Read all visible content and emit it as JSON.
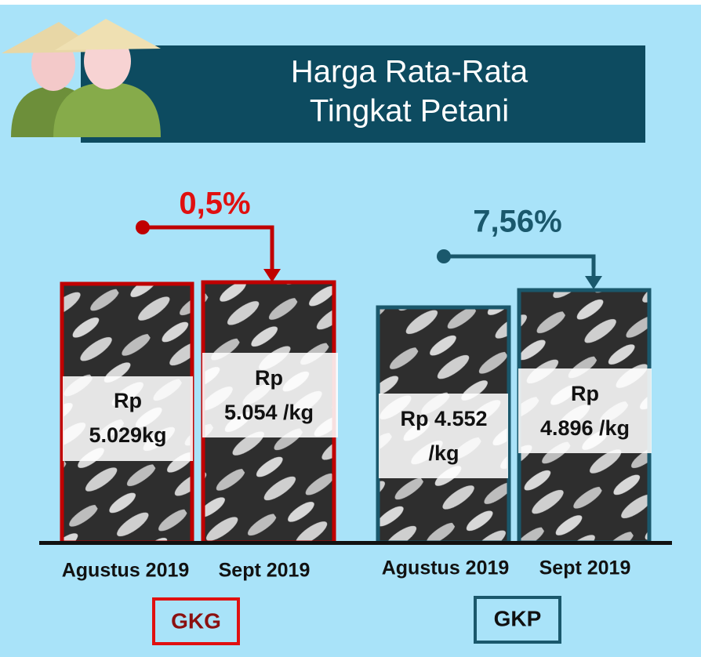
{
  "title": [
    "Harga Rata-Rata",
    "Tingkat Petani"
  ],
  "groups": [
    {
      "label": "GKG",
      "change": "0,5%",
      "bars": [
        {
          "period": "Agustus 2019",
          "price": [
            "Rp",
            "5.029kg"
          ]
        },
        {
          "period": "Sept 2019",
          "price": [
            "Rp",
            "5.054 /kg"
          ]
        }
      ]
    },
    {
      "label": "GKP",
      "change": "7,56%",
      "bars": [
        {
          "period": "Agustus 2019",
          "price": [
            "Rp 4.552",
            "/kg"
          ]
        },
        {
          "period": "Sept 2019",
          "price": [
            "Rp",
            "4.896 /kg"
          ]
        }
      ]
    }
  ]
}
